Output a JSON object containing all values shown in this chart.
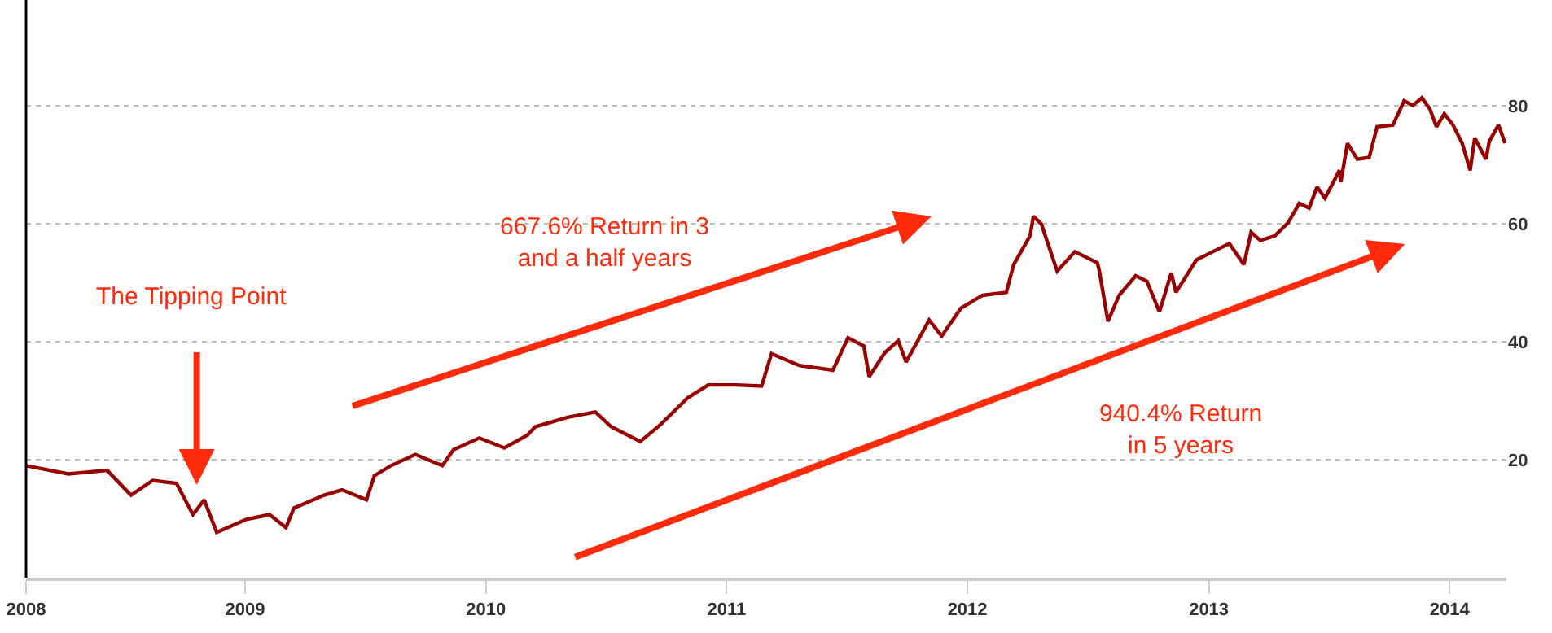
{
  "chart_data": {
    "type": "line",
    "x": [
      "2008-02-04",
      "2008-04-08",
      "2008-06-06",
      "2008-07-12",
      "2008-08-14",
      "2008-09-19",
      "2008-10-14",
      "2008-10-31",
      "2008-11-19",
      "2009-01-03",
      "2009-02-07",
      "2009-03-04",
      "2009-03-16",
      "2009-05-01",
      "2009-05-28",
      "2009-07-04",
      "2009-07-16",
      "2009-08-10",
      "2009-09-16",
      "2009-10-27",
      "2009-11-13",
      "2009-12-22",
      "2010-01-29",
      "2010-03-05",
      "2010-03-17",
      "2010-05-05",
      "2010-06-16",
      "2010-07-10",
      "2010-08-23",
      "2010-09-22",
      "2010-11-03",
      "2010-12-04",
      "2011-01-15",
      "2011-02-23",
      "2011-03-10",
      "2011-04-21",
      "2011-06-11",
      "2011-07-04",
      "2011-07-28",
      "2011-08-05",
      "2011-08-29",
      "2011-09-18",
      "2011-09-30",
      "2011-11-04",
      "2011-11-23",
      "2011-12-22",
      "2012-01-24",
      "2012-02-29",
      "2012-03-11",
      "2012-04-05",
      "2012-04-10",
      "2012-04-22",
      "2012-05-16",
      "2012-06-12",
      "2012-07-16",
      "2012-07-19",
      "2012-08-01",
      "2012-08-18",
      "2012-09-12",
      "2012-09-29",
      "2012-10-18",
      "2012-11-05",
      "2012-11-12",
      "2012-12-13",
      "2013-01-07",
      "2013-02-01",
      "2013-02-23",
      "2013-03-06",
      "2013-03-20",
      "2013-04-11",
      "2013-05-01",
      "2013-05-18",
      "2013-06-02",
      "2013-06-14",
      "2013-06-26",
      "2013-07-18",
      "2013-07-20",
      "2013-07-30",
      "2013-08-14",
      "2013-09-01",
      "2013-09-13",
      "2013-10-07",
      "2013-10-24",
      "2013-11-06",
      "2013-11-20",
      "2013-12-02",
      "2013-12-12",
      "2013-12-24",
      "2014-01-06",
      "2014-01-20",
      "2014-02-01",
      "2014-02-08",
      "2014-02-25",
      "2014-03-02",
      "2014-03-16",
      "2014-03-26"
    ],
    "series": [
      {
        "color": "#990000",
        "values": [
          19.0,
          17.6,
          18.2,
          14.0,
          16.5,
          16.0,
          10.7,
          13.2,
          7.7,
          9.9,
          10.7,
          8.5,
          11.8,
          14.0,
          14.9,
          13.2,
          17.3,
          19.0,
          20.9,
          19.0,
          21.7,
          23.7,
          22.0,
          24.2,
          25.6,
          27.2,
          28.1,
          25.6,
          23.1,
          25.9,
          30.5,
          32.7,
          32.7,
          32.5,
          38.0,
          36.0,
          35.2,
          40.7,
          39.3,
          34.1,
          38.2,
          40.2,
          36.6,
          43.7,
          41.0,
          45.7,
          47.9,
          48.4,
          53.1,
          58.0,
          61.3,
          60.0,
          52.0,
          55.3,
          53.4,
          52.0,
          43.5,
          47.9,
          51.2,
          50.3,
          45.1,
          51.7,
          48.4,
          53.9,
          55.3,
          56.7,
          53.1,
          58.6,
          57.2,
          58.0,
          60.2,
          63.5,
          62.7,
          66.3,
          64.4,
          69.1,
          67.1,
          73.7,
          71.0,
          71.3,
          76.5,
          76.8,
          80.9,
          80.1,
          81.4,
          79.5,
          76.5,
          78.7,
          76.8,
          73.7,
          69.1,
          74.6,
          71.0,
          74.0,
          76.8,
          73.7
        ]
      }
    ],
    "xlim": [
      "2008-02-04",
      "2014-03-28"
    ],
    "xticks": [
      {
        "value": "2008-02-04",
        "label": "2008"
      },
      {
        "value": "2009-01-01",
        "label": "2009"
      },
      {
        "value": "2010-01-01",
        "label": "2010"
      },
      {
        "value": "2011-01-01",
        "label": "2011"
      },
      {
        "value": "2012-01-01",
        "label": "2012"
      },
      {
        "value": "2013-01-01",
        "label": "2013"
      },
      {
        "value": "2014-01-01",
        "label": "2014"
      }
    ],
    "ylim": [
      0,
      98
    ],
    "yticks": [
      20,
      40,
      60,
      80
    ],
    "grid": "y",
    "marker": "none",
    "line_style": "solid",
    "annotations": [
      "The Tipping Point",
      "667.6% Return in 3\nand a half years",
      "940.4% Return\nin 5 years"
    ]
  }
}
